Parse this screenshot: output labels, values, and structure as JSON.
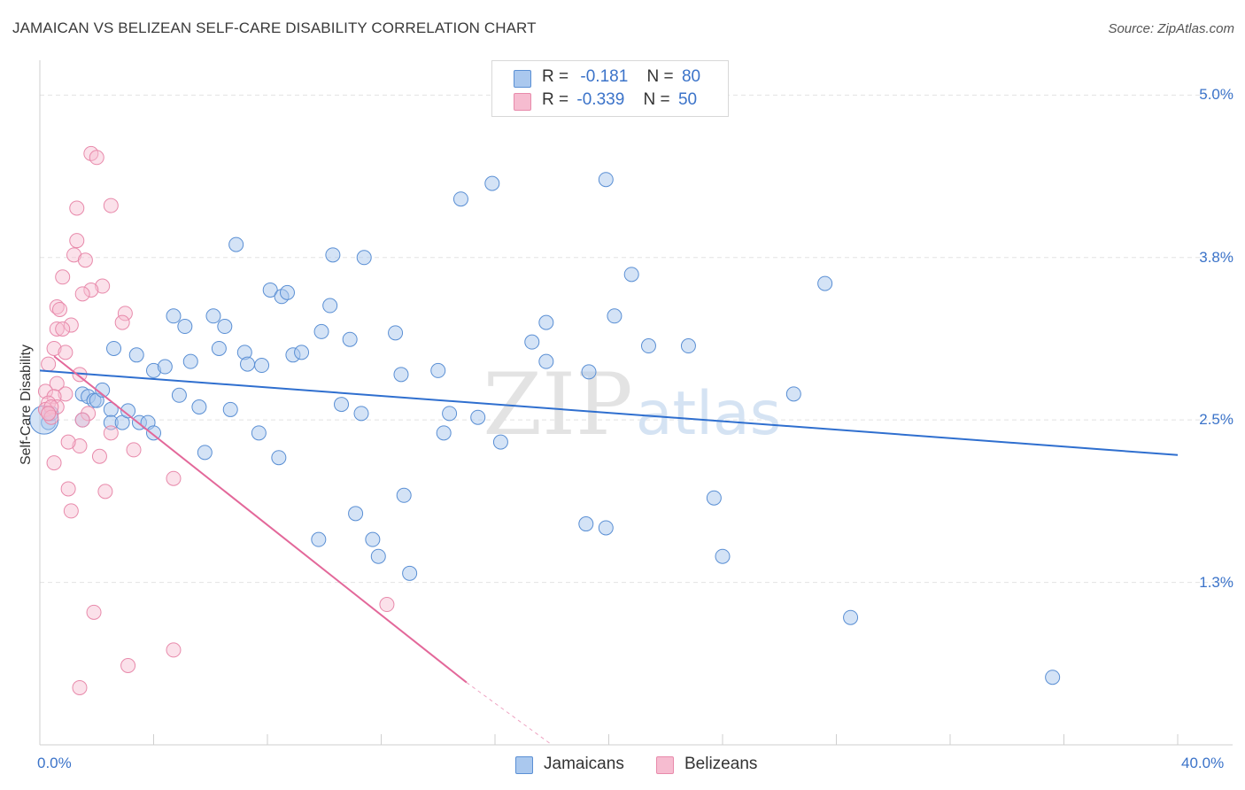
{
  "title": "JAMAICAN VS BELIZEAN SELF-CARE DISABILITY CORRELATION CHART",
  "source": "Source: ZipAtlas.com",
  "watermark": {
    "zip": "ZIP",
    "atlas": "atlas"
  },
  "legend": {
    "r_label": "R =",
    "n_label": "N =",
    "jamaicans": {
      "r": "-0.181",
      "n": "80"
    },
    "belizeans": {
      "r": "-0.339",
      "n": "50"
    }
  },
  "colors": {
    "jamaicans_fill": "#aac8ee",
    "jamaicans_stroke": "#5a8fd4",
    "jamaicans_line": "#2f6fcf",
    "belizeans_fill": "#f6bcd0",
    "belizeans_stroke": "#e88aab",
    "belizeans_line": "#e3689a",
    "tick_label": "#3b73c9"
  },
  "chart_data": {
    "type": "scatter",
    "title": "JAMAICAN VS BELIZEAN SELF-CARE DISABILITY CORRELATION CHART",
    "xlabel": "",
    "ylabel": "Self-Care Disability",
    "xlim": [
      0,
      40
    ],
    "ylim": [
      0.0,
      5.2
    ],
    "x_tick_labels": [
      "0.0%",
      "40.0%"
    ],
    "y_ticks": [
      1.25,
      2.5,
      3.75,
      5.0
    ],
    "y_tick_labels": [
      "1.3%",
      "2.5%",
      "3.8%",
      "5.0%"
    ],
    "grid": true,
    "series": [
      {
        "name": "Jamaicans",
        "points": [
          [
            0.3,
            2.48
          ],
          [
            0.4,
            2.55
          ],
          [
            1.5,
            2.7
          ],
          [
            1.7,
            2.68
          ],
          [
            1.9,
            2.65
          ],
          [
            2.0,
            2.65
          ],
          [
            1.5,
            2.5
          ],
          [
            2.2,
            2.73
          ],
          [
            2.5,
            2.58
          ],
          [
            2.5,
            2.48
          ],
          [
            2.6,
            3.05
          ],
          [
            2.9,
            2.48
          ],
          [
            3.1,
            2.57
          ],
          [
            3.4,
            3.0
          ],
          [
            3.5,
            2.48
          ],
          [
            3.8,
            2.48
          ],
          [
            4.0,
            2.4
          ],
          [
            4.0,
            2.88
          ],
          [
            4.4,
            2.91
          ],
          [
            4.7,
            3.3
          ],
          [
            4.9,
            2.69
          ],
          [
            5.1,
            3.22
          ],
          [
            5.3,
            2.95
          ],
          [
            5.6,
            2.6
          ],
          [
            5.8,
            2.25
          ],
          [
            6.1,
            3.3
          ],
          [
            6.3,
            3.05
          ],
          [
            6.5,
            3.22
          ],
          [
            6.7,
            2.58
          ],
          [
            6.9,
            3.85
          ],
          [
            7.2,
            3.02
          ],
          [
            7.3,
            2.93
          ],
          [
            7.7,
            2.4
          ],
          [
            7.8,
            2.92
          ],
          [
            8.1,
            3.5
          ],
          [
            8.4,
            2.21
          ],
          [
            8.5,
            3.45
          ],
          [
            8.7,
            3.48
          ],
          [
            8.9,
            3.0
          ],
          [
            9.2,
            3.02
          ],
          [
            9.8,
            1.58
          ],
          [
            9.9,
            3.18
          ],
          [
            10.2,
            3.38
          ],
          [
            10.3,
            3.77
          ],
          [
            10.6,
            2.62
          ],
          [
            10.9,
            3.12
          ],
          [
            11.1,
            1.78
          ],
          [
            11.3,
            2.55
          ],
          [
            11.4,
            3.75
          ],
          [
            11.7,
            1.58
          ],
          [
            11.9,
            1.45
          ],
          [
            12.5,
            3.17
          ],
          [
            12.7,
            2.85
          ],
          [
            12.8,
            1.92
          ],
          [
            13.0,
            1.32
          ],
          [
            14.0,
            2.88
          ],
          [
            14.2,
            2.4
          ],
          [
            14.4,
            2.55
          ],
          [
            14.8,
            4.2
          ],
          [
            15.4,
            2.52
          ],
          [
            15.9,
            4.32
          ],
          [
            16.2,
            2.33
          ],
          [
            17.3,
            3.1
          ],
          [
            17.8,
            3.25
          ],
          [
            17.8,
            2.95
          ],
          [
            19.2,
            1.7
          ],
          [
            19.3,
            2.87
          ],
          [
            19.9,
            1.67
          ],
          [
            19.9,
            4.35
          ],
          [
            20.2,
            3.3
          ],
          [
            20.8,
            3.62
          ],
          [
            21.4,
            3.07
          ],
          [
            22.8,
            3.07
          ],
          [
            23.7,
            1.9
          ],
          [
            24.0,
            1.45
          ],
          [
            26.5,
            2.7
          ],
          [
            27.6,
            3.55
          ],
          [
            28.5,
            0.98
          ],
          [
            35.6,
            0.52
          ],
          [
            0.15,
            2.5
          ]
        ]
      },
      {
        "name": "Belizeans",
        "points": [
          [
            1.8,
            4.55
          ],
          [
            2.0,
            4.52
          ],
          [
            1.3,
            4.13
          ],
          [
            2.5,
            4.15
          ],
          [
            1.3,
            3.88
          ],
          [
            1.2,
            3.77
          ],
          [
            1.6,
            3.73
          ],
          [
            0.8,
            3.6
          ],
          [
            2.2,
            3.53
          ],
          [
            1.8,
            3.5
          ],
          [
            1.5,
            3.47
          ],
          [
            0.6,
            3.37
          ],
          [
            0.7,
            3.35
          ],
          [
            3.0,
            3.32
          ],
          [
            2.9,
            3.25
          ],
          [
            1.1,
            3.23
          ],
          [
            0.6,
            3.2
          ],
          [
            0.8,
            3.2
          ],
          [
            0.5,
            3.05
          ],
          [
            0.9,
            3.02
          ],
          [
            0.3,
            2.93
          ],
          [
            1.4,
            2.85
          ],
          [
            0.6,
            2.78
          ],
          [
            0.9,
            2.7
          ],
          [
            0.2,
            2.72
          ],
          [
            0.5,
            2.68
          ],
          [
            0.3,
            2.63
          ],
          [
            0.6,
            2.6
          ],
          [
            0.2,
            2.58
          ],
          [
            0.4,
            2.6
          ],
          [
            0.3,
            2.55
          ],
          [
            1.7,
            2.55
          ],
          [
            0.4,
            2.52
          ],
          [
            1.5,
            2.5
          ],
          [
            2.5,
            2.4
          ],
          [
            1.4,
            2.3
          ],
          [
            1.0,
            2.33
          ],
          [
            3.3,
            2.27
          ],
          [
            2.1,
            2.22
          ],
          [
            0.5,
            2.17
          ],
          [
            4.7,
            2.05
          ],
          [
            1.0,
            1.97
          ],
          [
            2.3,
            1.95
          ],
          [
            1.1,
            1.8
          ],
          [
            12.2,
            1.08
          ],
          [
            1.9,
            1.02
          ],
          [
            4.7,
            0.73
          ],
          [
            3.1,
            0.61
          ],
          [
            1.4,
            0.44
          ],
          [
            0.3,
            2.55
          ]
        ]
      }
    ],
    "trend_lines": [
      {
        "series": "Jamaicans",
        "x": [
          0,
          40
        ],
        "y": [
          2.88,
          2.23
        ]
      },
      {
        "series": "Belizeans",
        "x": [
          0.5,
          15.0
        ],
        "y": [
          2.99,
          0.48
        ]
      },
      {
        "series": "Belizeans (extrapolated)",
        "x": [
          15.0,
          18.0
        ],
        "y": [
          0.48,
          0.0
        ]
      }
    ]
  }
}
